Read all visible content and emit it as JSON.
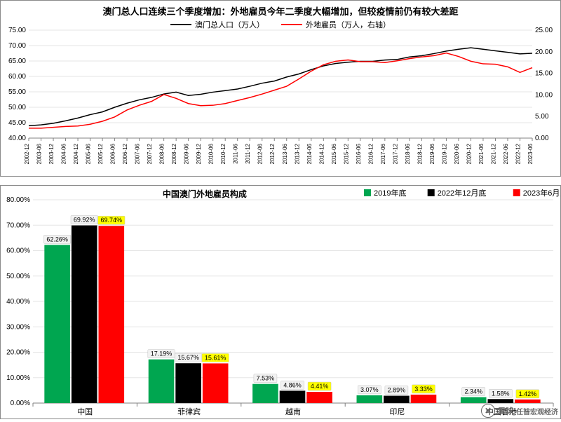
{
  "top_chart": {
    "type": "line-dual-axis",
    "title": "澳门总人口连续三个季度增加：外地雇员今年二季度大幅增加，但较疫情前仍有较大差距",
    "title_fontsize": 13,
    "title_color": "#000000",
    "background_color": "#ffffff",
    "grid_color": "#e6e6e6",
    "axis_color": "#808080",
    "y1_lim": [
      40,
      75
    ],
    "y1_tick_step": 5,
    "y2_lim": [
      0,
      25
    ],
    "y2_tick_step": 5,
    "y1_ticks": [
      "40.00",
      "45.00",
      "50.00",
      "55.00",
      "60.00",
      "65.00",
      "70.00",
      "75.00"
    ],
    "y2_ticks": [
      "0.00",
      "5.00",
      "10.00",
      "15.00",
      "20.00",
      "25.00"
    ],
    "x_categories": [
      "2002-12",
      "2003-06",
      "2003-12",
      "2004-06",
      "2004-12",
      "2005-06",
      "2005-12",
      "2006-06",
      "2006-12",
      "2007-06",
      "2007-12",
      "2008-06",
      "2008-12",
      "2009-06",
      "2009-12",
      "2010-06",
      "2010-12",
      "2011-06",
      "2011-12",
      "2012-06",
      "2012-12",
      "2013-06",
      "2013-12",
      "2014-06",
      "2014-12",
      "2015-06",
      "2015-12",
      "2016-06",
      "2016-12",
      "2017-06",
      "2017-12",
      "2018-06",
      "2018-12",
      "2019-06",
      "2019-12",
      "2020-06",
      "2020-12",
      "2021-06",
      "2021-12",
      "2022-06",
      "2022-12",
      "2023-06"
    ],
    "series1": {
      "name": "澳门总人口（万人）",
      "color": "#000000",
      "line_width": 1.5,
      "values": [
        44.0,
        44.3,
        44.8,
        45.6,
        46.5,
        47.6,
        48.5,
        50.0,
        51.3,
        52.4,
        53.2,
        54.3,
        54.9,
        53.8,
        54.2,
        54.9,
        55.4,
        55.9,
        56.8,
        57.8,
        58.5,
        59.8,
        60.8,
        62.2,
        63.4,
        64.2,
        64.6,
        64.9,
        64.9,
        65.3,
        65.5,
        66.3,
        66.7,
        67.4,
        68.2,
        68.8,
        69.3,
        68.8,
        68.3,
        67.8,
        67.3,
        67.5
      ]
    },
    "series2": {
      "name": "外地雇员（万人，右轴）",
      "color": "#ff0000",
      "line_width": 1.5,
      "values": [
        2.3,
        2.3,
        2.5,
        2.7,
        2.8,
        3.2,
        3.9,
        4.9,
        6.5,
        7.6,
        8.5,
        10.1,
        9.2,
        8.0,
        7.5,
        7.6,
        8.0,
        8.7,
        9.4,
        10.2,
        11.1,
        12.0,
        13.7,
        15.5,
        17.0,
        17.8,
        18.1,
        17.7,
        17.7,
        17.5,
        17.9,
        18.4,
        18.8,
        19.1,
        19.7,
        18.9,
        17.8,
        17.2,
        17.1,
        16.5,
        15.2,
        16.3
      ]
    },
    "legend_items": [
      {
        "label": "澳门总人口（万人）",
        "color": "#000000"
      },
      {
        "label": "外地雇员（万人，右轴）",
        "color": "#ff0000"
      }
    ]
  },
  "bottom_chart": {
    "type": "bar-grouped",
    "title": "中国澳门外地雇员构成",
    "title_fontsize": 12,
    "background_color": "#ffffff",
    "grid_color": "#e6e6e6",
    "axis_color": "#808080",
    "ylim": [
      0,
      80
    ],
    "ytick_step": 10,
    "yticks": [
      "0.00%",
      "10.00%",
      "20.00%",
      "30.00%",
      "40.00%",
      "50.00%",
      "60.00%",
      "70.00%",
      "80.00%"
    ],
    "categories": [
      "中国",
      "菲律宾",
      "越南",
      "印尼",
      "中国香港"
    ],
    "series": [
      {
        "name": "2019年底",
        "color": "#00a650",
        "values": [
          62.26,
          17.19,
          7.53,
          3.07,
          2.34
        ],
        "highlight": false
      },
      {
        "name": "2022年12月底",
        "color": "#000000",
        "values": [
          69.92,
          15.67,
          4.86,
          2.89,
          1.58
        ],
        "highlight": false
      },
      {
        "name": "2023年6月底",
        "color": "#ff0000",
        "values": [
          69.74,
          15.61,
          4.41,
          3.33,
          1.42
        ],
        "highlight": true
      }
    ],
    "bar_width": 0.26,
    "label_fontsize": 9,
    "label_box_bg": "#f2f2f2",
    "label_box_hl": "#ffff00",
    "label_box_border": "#c0c0c0"
  },
  "watermark": {
    "icon": "⊘",
    "text_a": "雪球",
    "text_b": "任暜宏观经济"
  }
}
